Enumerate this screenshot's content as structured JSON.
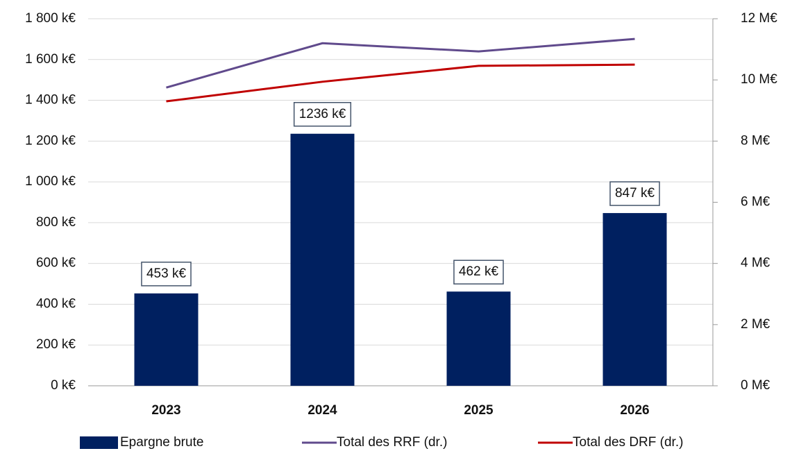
{
  "chart_data": {
    "type": "combo",
    "categories": [
      "2023",
      "2024",
      "2025",
      "2026"
    ],
    "series": [
      {
        "name": "Epargne brute",
        "type": "bar",
        "color": "#002060",
        "values": [
          453,
          1236,
          462,
          847
        ],
        "value_labels": [
          "453 k€",
          "1236 k€",
          "462 k€",
          "847 k€"
        ]
      },
      {
        "name": "Total des RRF (dr.)",
        "type": "line",
        "axis": "y2",
        "color": "#604a8c",
        "values": [
          9.75,
          11.2,
          10.93,
          11.34
        ]
      },
      {
        "name": "Total des DRF (dr.)",
        "type": "line",
        "axis": "y2",
        "color": "#c00000",
        "values": [
          9.3,
          9.94,
          10.46,
          10.5
        ]
      }
    ],
    "ylim": [
      0,
      1800
    ],
    "yticks": [
      {
        "value": 0,
        "label": "0 k€"
      },
      {
        "value": 200,
        "label": "200 k€"
      },
      {
        "value": 400,
        "label": "400 k€"
      },
      {
        "value": 600,
        "label": "600 k€"
      },
      {
        "value": 800,
        "label": "800 k€"
      },
      {
        "value": 1000,
        "label": "1 000 k€"
      },
      {
        "value": 1200,
        "label": "1 200 k€"
      },
      {
        "value": 1400,
        "label": "1 400 k€"
      },
      {
        "value": 1600,
        "label": "1 600 k€"
      },
      {
        "value": 1800,
        "label": "1 800 k€"
      }
    ],
    "y2lim": [
      0,
      12
    ],
    "y2ticks": [
      {
        "value": 0,
        "label": "0 M€"
      },
      {
        "value": 2,
        "label": "2 M€"
      },
      {
        "value": 4,
        "label": "4 M€"
      },
      {
        "value": 6,
        "label": "6 M€"
      },
      {
        "value": 8,
        "label": "8 M€"
      },
      {
        "value": 10,
        "label": "10 M€"
      },
      {
        "value": 12,
        "label": "12 M€"
      }
    ],
    "grid": true,
    "legend": "bottom"
  }
}
